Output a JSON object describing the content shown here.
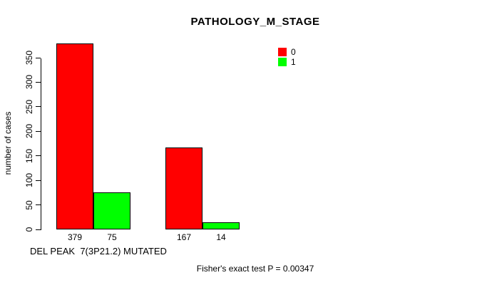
{
  "chart_data": {
    "type": "bar",
    "title": "PATHOLOGY_M_STAGE",
    "ylabel": "number of cases",
    "xlabel": "DEL PEAK  7(3P21.2) MUTATED",
    "series": [
      {
        "name": "0",
        "color": "#ff0000",
        "values": [
          379,
          167
        ]
      },
      {
        "name": "1",
        "color": "#00ff00",
        "values": [
          75,
          14
        ]
      }
    ],
    "bar_value_labels": [
      "379",
      "75",
      "167",
      "14"
    ],
    "yticks": [
      0,
      50,
      100,
      150,
      200,
      250,
      300,
      350
    ],
    "ylim": [
      0,
      350
    ],
    "grid": false,
    "legend_position": "top-right",
    "annotation": "Fisher's exact test P = 0.00347",
    "colors": {
      "background": "#ffffff",
      "axis": "#000000",
      "text": "#000000"
    }
  }
}
